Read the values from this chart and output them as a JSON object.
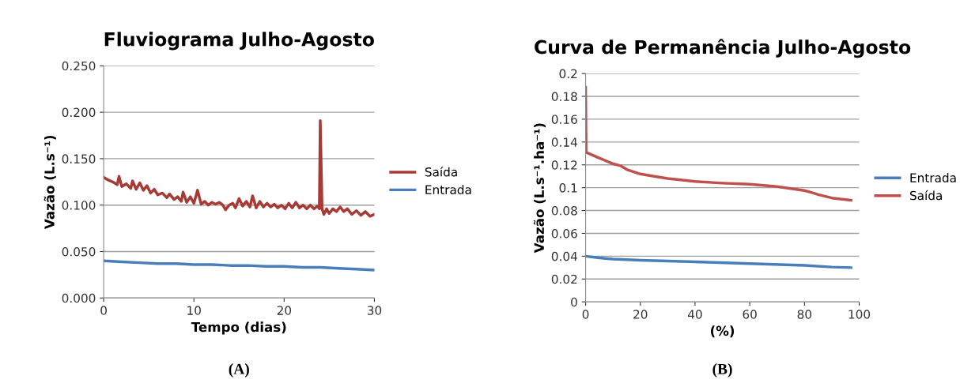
{
  "chart_data": [
    {
      "type": "line",
      "title": "Fluviograma Julho-Agosto",
      "xlabel": "Tempo (dias)",
      "ylabel": "Vazão (L.s⁻¹)",
      "xlim": [
        0,
        30
      ],
      "xticks": [
        0,
        10,
        20,
        30
      ],
      "ylim": [
        0,
        0.25
      ],
      "yticks": [
        {
          "value": 0,
          "label": "0.000"
        },
        {
          "value": 0.05,
          "label": "0.050"
        },
        {
          "value": 0.1,
          "label": "0.100"
        },
        {
          "value": 0.15,
          "label": "0.150"
        },
        {
          "value": 0.2,
          "label": "0.200"
        },
        {
          "value": 0.25,
          "label": "0.250"
        }
      ],
      "grid": "y",
      "legend": "right",
      "marker": "none",
      "line_style": "solid",
      "annotations": [
        "(A)"
      ],
      "series": [
        {
          "name": "Saída",
          "color": "#a83a36",
          "x": [
            0,
            0.5,
            1,
            1.5,
            1.7,
            2,
            2.5,
            3,
            3.2,
            3.6,
            4,
            4.4,
            4.8,
            5.2,
            5.6,
            6,
            6.5,
            7,
            7.3,
            7.8,
            8.2,
            8.6,
            8.8,
            9.2,
            9.6,
            10,
            10.4,
            10.8,
            11.2,
            11.6,
            12,
            12.4,
            12.8,
            13.2,
            13.5,
            13.9,
            14.3,
            14.6,
            15,
            15.4,
            15.8,
            16.2,
            16.5,
            16.9,
            17.3,
            17.7,
            18.1,
            18.5,
            18.9,
            19.3,
            19.7,
            20.1,
            20.5,
            20.9,
            21.3,
            21.7,
            22.1,
            22.5,
            22.9,
            23.3,
            23.7,
            23.9,
            24.0,
            24.2,
            24.4,
            24.7,
            25,
            25.4,
            25.8,
            26.2,
            26.6,
            27,
            27.5,
            28,
            28.5,
            29,
            29.5,
            30
          ],
          "values": [
            0.13,
            0.127,
            0.125,
            0.122,
            0.131,
            0.12,
            0.123,
            0.118,
            0.126,
            0.117,
            0.124,
            0.116,
            0.121,
            0.113,
            0.117,
            0.111,
            0.113,
            0.108,
            0.112,
            0.106,
            0.109,
            0.104,
            0.114,
            0.103,
            0.109,
            0.102,
            0.116,
            0.101,
            0.104,
            0.1,
            0.103,
            0.101,
            0.103,
            0.1,
            0.095,
            0.1,
            0.102,
            0.097,
            0.107,
            0.099,
            0.104,
            0.098,
            0.11,
            0.097,
            0.104,
            0.098,
            0.102,
            0.098,
            0.101,
            0.097,
            0.1,
            0.096,
            0.102,
            0.097,
            0.103,
            0.097,
            0.1,
            0.096,
            0.1,
            0.096,
            0.099,
            0.096,
            0.191,
            0.096,
            0.09,
            0.096,
            0.091,
            0.096,
            0.093,
            0.098,
            0.093,
            0.096,
            0.09,
            0.094,
            0.089,
            0.093,
            0.088,
            0.09
          ]
        },
        {
          "name": "Entrada",
          "color": "#4a7ebb",
          "x": [
            0,
            2,
            4,
            6,
            8,
            10,
            12,
            14,
            16,
            18,
            20,
            22,
            24,
            26,
            28,
            30
          ],
          "values": [
            0.04,
            0.039,
            0.038,
            0.037,
            0.037,
            0.036,
            0.036,
            0.035,
            0.035,
            0.034,
            0.034,
            0.033,
            0.033,
            0.032,
            0.031,
            0.03
          ]
        }
      ]
    },
    {
      "type": "line",
      "title": "Curva de Permanência Julho-Agosto",
      "xlabel": "(%)",
      "ylabel": "Vazão (L.s⁻¹.ha⁻¹)",
      "xlim": [
        0,
        100
      ],
      "xticks": [
        0,
        20,
        40,
        60,
        80,
        100
      ],
      "ylim": [
        0,
        0.2
      ],
      "yticks": [
        0,
        0.02,
        0.04,
        0.06,
        0.08,
        0.1,
        0.12,
        0.14,
        0.16,
        0.18,
        0.2
      ],
      "grid": "y",
      "legend": "right",
      "marker": "none",
      "line_style": "solid",
      "annotations": [
        "(B)"
      ],
      "series": [
        {
          "name": "Entrada",
          "color": "#4a7ebb",
          "x": [
            0,
            5,
            10,
            20,
            40,
            60,
            80,
            90,
            97
          ],
          "values": [
            0.04,
            0.0385,
            0.0375,
            0.0365,
            0.035,
            0.0335,
            0.032,
            0.0305,
            0.03
          ]
        },
        {
          "name": "Saída",
          "color": "#c0504d",
          "x": [
            0,
            0.2,
            5,
            10,
            13,
            15,
            20,
            25,
            30,
            40,
            50,
            60,
            70,
            80,
            83,
            85,
            90,
            97
          ],
          "values": [
            0.188,
            0.131,
            0.126,
            0.121,
            0.119,
            0.116,
            0.112,
            0.11,
            0.108,
            0.1055,
            0.104,
            0.103,
            0.101,
            0.0975,
            0.0955,
            0.094,
            0.091,
            0.089
          ]
        }
      ]
    }
  ]
}
